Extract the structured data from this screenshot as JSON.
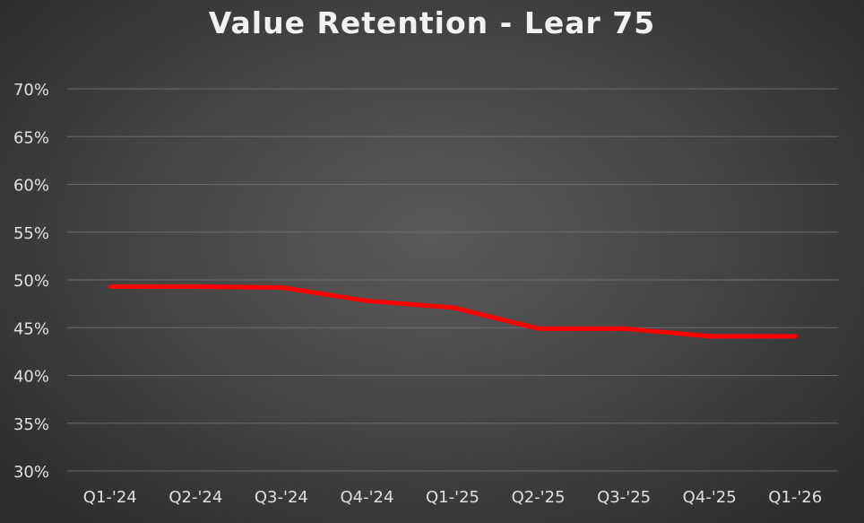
{
  "chart_data": {
    "type": "line",
    "title": "Value Retention - Lear 75",
    "xlabel": "",
    "ylabel": "",
    "categories": [
      "Q1-'24",
      "Q2-'24",
      "Q3-'24",
      "Q4-'24",
      "Q1-'25",
      "Q2-'25",
      "Q3-'25",
      "Q4-'25",
      "Q1-'26"
    ],
    "series": [
      {
        "values": [
          49.3,
          49.3,
          49.2,
          47.8,
          47.1,
          44.9,
          44.9,
          44.1,
          44.1
        ],
        "color": "#ff0000"
      }
    ],
    "ylim": [
      30,
      70
    ],
    "yticks": [
      30,
      35,
      40,
      45,
      50,
      55,
      60,
      65,
      70
    ],
    "ytick_labels": [
      "30%",
      "35%",
      "40%",
      "45%",
      "50%",
      "55%",
      "60%",
      "65%",
      "70%"
    ],
    "grid": true,
    "legend": "none"
  }
}
